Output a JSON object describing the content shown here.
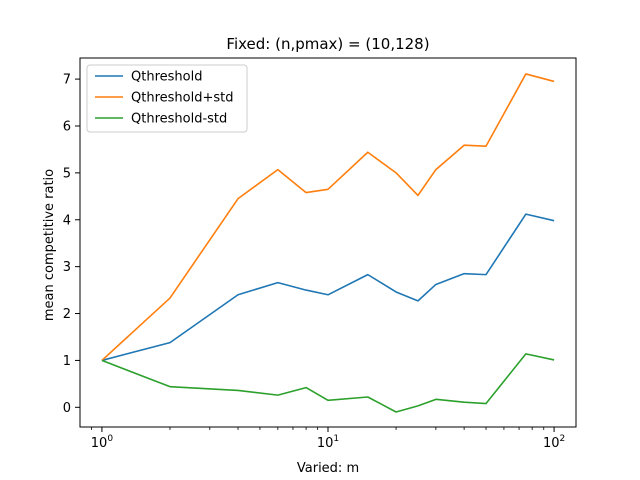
{
  "chart_data": {
    "type": "line",
    "title": "Fixed: (n,pmax) = (10,128)",
    "xlabel": "Varied: m",
    "ylabel": "mean competitive ratio",
    "xscale": "log",
    "xlim": [
      0.8,
      125
    ],
    "ylim": [
      -0.42,
      7.45
    ],
    "x": [
      1,
      2,
      4,
      6,
      8,
      10,
      15,
      20,
      25,
      30,
      40,
      50,
      75,
      100
    ],
    "x_ticks": [
      {
        "value": 1,
        "base": "10",
        "exp": "0"
      },
      {
        "value": 10,
        "base": "10",
        "exp": "1"
      },
      {
        "value": 100,
        "base": "10",
        "exp": "2"
      }
    ],
    "y_ticks": [
      0,
      1,
      2,
      3,
      4,
      5,
      6,
      7
    ],
    "legend_position": "top-left",
    "grid": false,
    "series": [
      {
        "name": "Qthreshold",
        "color": "#1f77b4",
        "values": [
          1.0,
          1.38,
          2.4,
          2.66,
          2.5,
          2.4,
          2.83,
          2.46,
          2.27,
          2.62,
          2.85,
          2.83,
          4.12,
          3.98
        ]
      },
      {
        "name": "Qthreshold+std",
        "color": "#ff7f0e",
        "values": [
          1.0,
          2.33,
          4.45,
          5.07,
          4.58,
          4.65,
          5.44,
          5.0,
          4.52,
          5.07,
          5.59,
          5.57,
          7.11,
          6.95
        ]
      },
      {
        "name": "Qthreshold-std",
        "color": "#2ca02c",
        "values": [
          1.0,
          0.44,
          0.36,
          0.26,
          0.42,
          0.15,
          0.22,
          -0.1,
          0.03,
          0.17,
          0.11,
          0.08,
          1.14,
          1.01
        ]
      }
    ]
  }
}
